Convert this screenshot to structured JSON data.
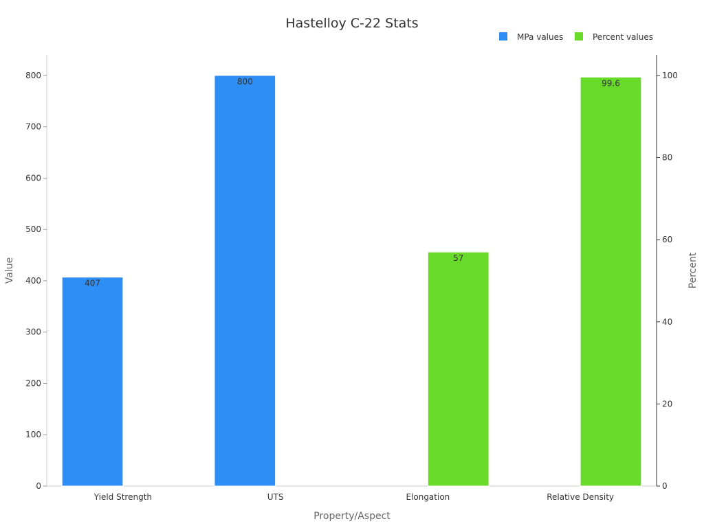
{
  "chart_data": {
    "type": "bar",
    "title": "Hastelloy C-22 Stats",
    "xlabel": "Property/Aspect",
    "ylabel": "Value",
    "ylabel_right": "Percent",
    "categories": [
      "Yield Strength",
      "UTS",
      "Elongation",
      "Relative Density"
    ],
    "series": [
      {
        "name": "MPa values",
        "axis": "left",
        "color": "#2d8ff5",
        "values": [
          407,
          800,
          null,
          null
        ],
        "labels": [
          "407",
          "800",
          "",
          ""
        ]
      },
      {
        "name": "Percent values",
        "axis": "right",
        "color": "#67da2a",
        "values": [
          null,
          null,
          57,
          99.6
        ],
        "labels": [
          "",
          "",
          "57",
          "99.6"
        ]
      }
    ],
    "ylim": [
      0,
      840
    ],
    "ylim_right": [
      0,
      105
    ],
    "yticks": [
      0,
      100,
      200,
      300,
      400,
      500,
      600,
      700,
      800
    ],
    "yticks_right": [
      0,
      20,
      40,
      60,
      80,
      100
    ],
    "legend_position": "top-right",
    "grid": false
  }
}
